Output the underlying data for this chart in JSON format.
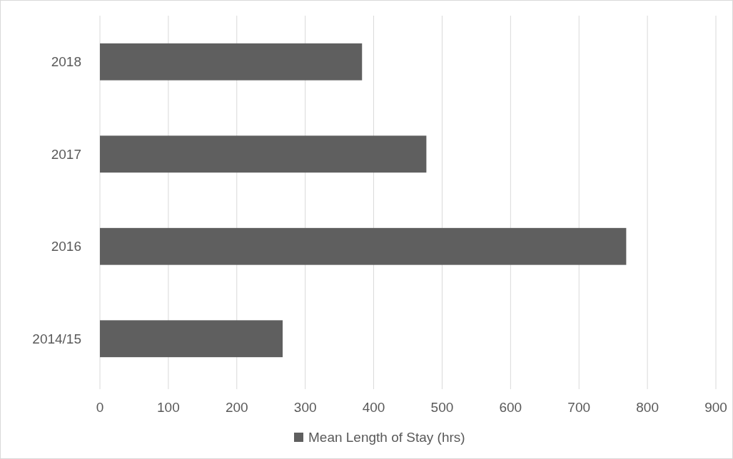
{
  "chart_data": {
    "type": "bar",
    "orientation": "horizontal",
    "categories": [
      "2018",
      "2017",
      "2016",
      "2014/15"
    ],
    "series": [
      {
        "name": "Mean Length of Stay (hrs)",
        "color": "#5f5f5f",
        "values": [
          383,
          477,
          769,
          267
        ]
      }
    ],
    "xlim": [
      0,
      900
    ],
    "xticks": [
      0,
      100,
      200,
      300,
      400,
      500,
      600,
      700,
      800,
      900
    ],
    "grid": "x",
    "legend": "bottom"
  }
}
